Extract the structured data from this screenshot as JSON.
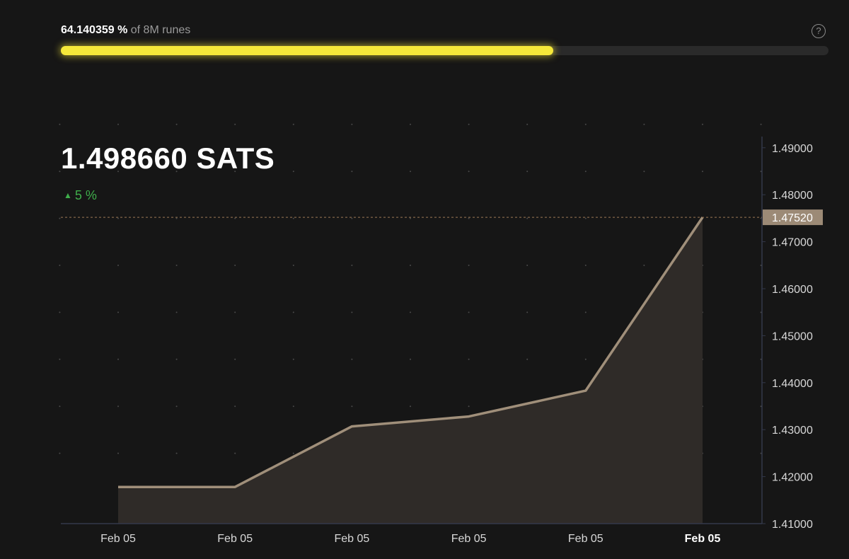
{
  "progress": {
    "percent_text": "64.140359 %",
    "suffix": "of 8M runes",
    "value_percent": 64.140359,
    "help_icon": "question-circle-icon"
  },
  "price": {
    "value": "1.498660 SATS",
    "change": "5 %",
    "change_icon": "triangle-up-icon",
    "change_color": "#3fae4b"
  },
  "colors": {
    "background": "#161616",
    "progress_fill": "#f5e83a",
    "line": "#a08f7a",
    "area": "#2f2b28",
    "price_tag": "#9c8a76"
  },
  "chart_data": {
    "type": "area",
    "x": [
      "Feb 05",
      "Feb 05",
      "Feb 05",
      "Feb 05",
      "Feb 05",
      "Feb 05"
    ],
    "values": [
      1.4178,
      1.4178,
      1.4307,
      1.4328,
      1.4383,
      1.4752
    ],
    "ylim": [
      1.41,
      1.49
    ],
    "yticks": [
      "1.41000",
      "1.42000",
      "1.43000",
      "1.44000",
      "1.45000",
      "1.46000",
      "1.47000",
      "1.48000",
      "1.49000"
    ],
    "current_price_label": "1.47520",
    "grid": "dotted"
  }
}
